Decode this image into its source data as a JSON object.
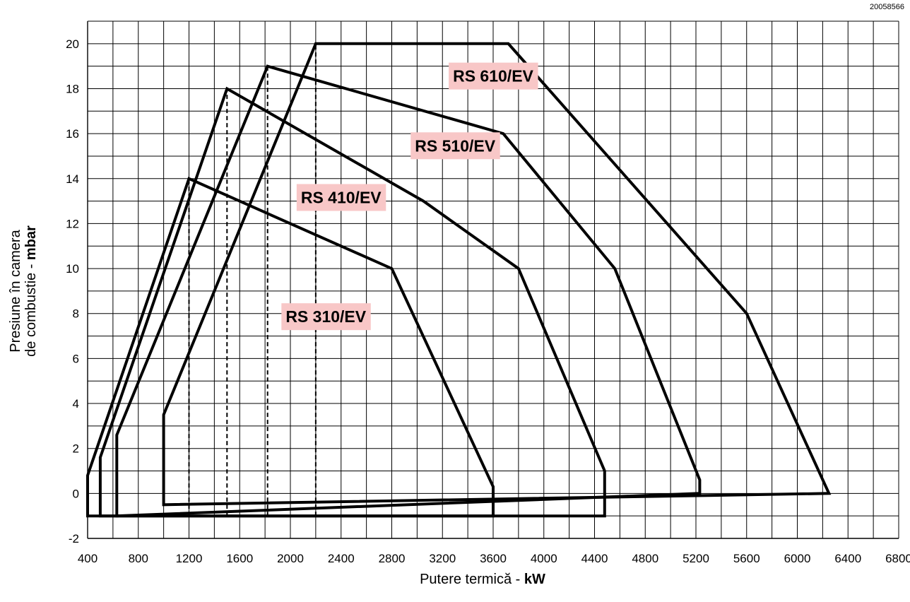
{
  "code": "20058566",
  "chart_data": {
    "type": "line",
    "xlabel": "Putere termică - ",
    "xlabel_unit": "kW",
    "ylabel_line1": "Presiune în camera",
    "ylabel_line2": "de combustie - ",
    "ylabel_unit": "mbar",
    "xlim": [
      400,
      6800
    ],
    "ylim": [
      -2,
      21
    ],
    "x_ticks": [
      400,
      800,
      1200,
      1600,
      2000,
      2400,
      2800,
      3200,
      3600,
      4000,
      4400,
      4800,
      5200,
      5600,
      6000,
      6400,
      6800
    ],
    "y_ticks": [
      -2,
      0,
      2,
      4,
      6,
      8,
      10,
      12,
      14,
      16,
      18,
      20
    ],
    "grid_step_x": 200,
    "grid_step_y": 1,
    "grid": true,
    "series": [
      {
        "name": "RS 310/EV",
        "points": [
          [
            400,
            -1
          ],
          [
            400,
            0.8
          ],
          [
            1200,
            14
          ],
          [
            2800,
            10
          ],
          [
            3600,
            0.3
          ],
          [
            3600,
            -1
          ],
          [
            400,
            -1
          ]
        ],
        "reference_x": 1200
      },
      {
        "name": "RS 410/EV",
        "points": [
          [
            500,
            -1
          ],
          [
            500,
            1.6
          ],
          [
            1500,
            18
          ],
          [
            3050,
            13
          ],
          [
            3800,
            10
          ],
          [
            4480,
            1
          ],
          [
            4480,
            -1
          ],
          [
            500,
            -1
          ]
        ],
        "reference_x": 1500
      },
      {
        "name": "RS 510/EV",
        "points": [
          [
            630,
            -1
          ],
          [
            630,
            2.6
          ],
          [
            1820,
            19
          ],
          [
            3680,
            16
          ],
          [
            4560,
            10
          ],
          [
            5230,
            0.6
          ],
          [
            5230,
            0
          ],
          [
            630,
            -1
          ]
        ],
        "reference_x": 1820
      },
      {
        "name": "RS 610/EV",
        "points": [
          [
            1000,
            -0.5
          ],
          [
            1000,
            3.5
          ],
          [
            2200,
            20
          ],
          [
            3720,
            20
          ],
          [
            5600,
            8
          ],
          [
            6250,
            0
          ],
          [
            1000,
            -0.5
          ]
        ],
        "reference_x": 2200
      }
    ],
    "annotations": [
      {
        "text": "RS 610/EV",
        "x": 3600,
        "y": 18.5
      },
      {
        "text": "RS 510/EV",
        "x": 3300,
        "y": 15.4
      },
      {
        "text": "RS 410/EV",
        "x": 2400,
        "y": 13.1
      },
      {
        "text": "RS 310/EV",
        "x": 2280,
        "y": 7.8
      }
    ]
  }
}
